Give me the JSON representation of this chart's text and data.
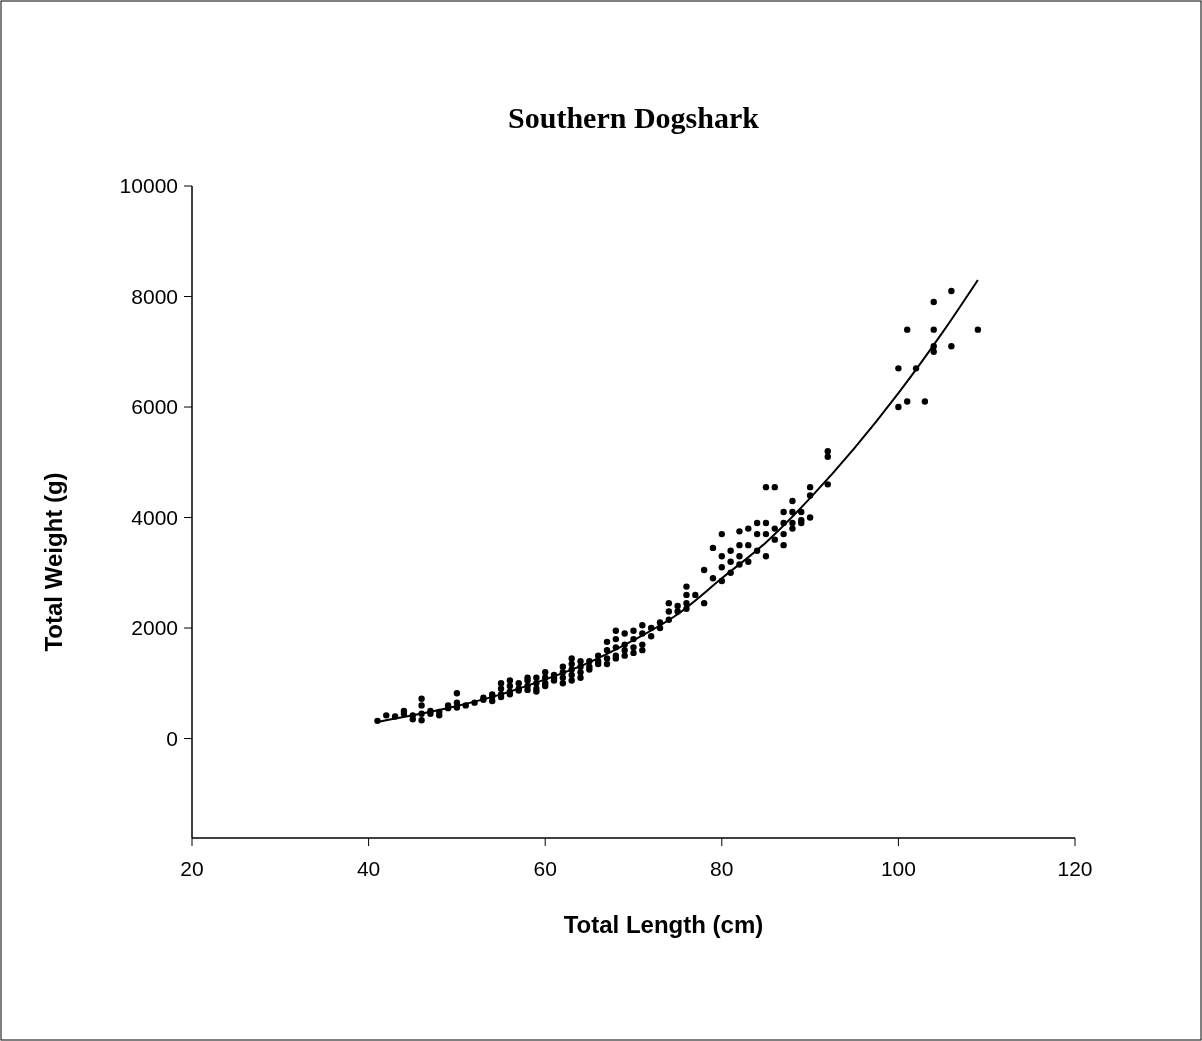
{
  "chart_data": {
    "type": "scatter",
    "title": "Southern Dogshark",
    "xlabel": "Total Length (cm)",
    "ylabel": "Total Weight (g)",
    "xlim": [
      20,
      120
    ],
    "xticks": [
      20,
      40,
      60,
      80,
      100,
      120
    ],
    "ylim": [
      -1800,
      10000
    ],
    "yticks": [
      0,
      2000,
      4000,
      6000,
      8000,
      10000
    ],
    "grid": false,
    "marker": "circle",
    "series": [
      {
        "color": "#000000",
        "x": [
          41,
          42,
          43,
          44,
          44,
          45,
          45,
          46,
          46,
          46,
          46,
          47,
          47,
          48,
          48,
          49,
          49,
          50,
          50,
          50,
          51,
          52,
          53,
          53,
          54,
          54,
          54,
          55,
          55,
          55,
          55,
          56,
          56,
          56,
          56,
          57,
          57,
          57,
          58,
          58,
          58,
          58,
          59,
          59,
          59,
          59,
          60,
          60,
          60,
          60,
          61,
          61,
          61,
          62,
          62,
          62,
          62,
          63,
          63,
          63,
          63,
          63,
          64,
          64,
          64,
          64,
          65,
          65,
          65,
          66,
          66,
          66,
          67,
          67,
          67,
          67,
          68,
          68,
          68,
          68,
          68,
          69,
          69,
          69,
          69,
          70,
          70,
          70,
          70,
          71,
          71,
          71,
          71,
          72,
          72,
          73,
          73,
          74,
          74,
          74,
          75,
          75,
          76,
          76,
          76,
          76,
          77,
          78,
          78,
          79,
          79,
          80,
          80,
          80,
          80,
          81,
          81,
          81,
          82,
          82,
          82,
          82,
          83,
          83,
          83,
          84,
          84,
          84,
          85,
          85,
          85,
          85,
          86,
          86,
          86,
          87,
          87,
          87,
          87,
          88,
          88,
          88,
          88,
          89,
          89,
          89,
          90,
          90,
          90,
          92,
          92,
          92,
          100,
          100,
          101,
          101,
          102,
          103,
          104,
          104,
          104,
          104,
          106,
          106,
          109
        ],
        "values": [
          320,
          420,
          400,
          450,
          500,
          350,
          420,
          330,
          450,
          600,
          720,
          450,
          500,
          480,
          420,
          550,
          600,
          560,
          650,
          820,
          600,
          650,
          700,
          740,
          680,
          760,
          800,
          800,
          900,
          1000,
          750,
          850,
          950,
          1050,
          800,
          900,
          1000,
          870,
          950,
          1050,
          1100,
          880,
          900,
          1000,
          1100,
          850,
          1000,
          1100,
          1200,
          950,
          1100,
          1050,
          1150,
          1100,
          1200,
          1300,
          1000,
          1150,
          1250,
          1350,
          1450,
          1050,
          1200,
          1300,
          1400,
          1100,
          1300,
          1400,
          1250,
          1400,
          1500,
          1350,
          1450,
          1600,
          1750,
          1350,
          1500,
          1650,
          1800,
          1950,
          1450,
          1600,
          1700,
          1900,
          1500,
          1650,
          1800,
          1950,
          1550,
          1700,
          1900,
          2050,
          1600,
          1850,
          2000,
          2000,
          2100,
          2300,
          2450,
          2150,
          2300,
          2400,
          2450,
          2600,
          2750,
          2350,
          2600,
          2450,
          3050,
          2900,
          3450,
          3100,
          3300,
          3700,
          2850,
          3000,
          3200,
          3400,
          3300,
          3500,
          3750,
          3150,
          3500,
          3800,
          3200,
          3700,
          3900,
          3400,
          3300,
          3700,
          3900,
          4550,
          3600,
          3800,
          4550,
          3500,
          3900,
          4100,
          3700,
          3900,
          4100,
          4300,
          3800,
          3900,
          4100,
          3950,
          4000,
          4400,
          4550,
          4600,
          5100,
          5200,
          6000,
          6700,
          6100,
          7400,
          6700,
          6100,
          7000,
          7100,
          7400,
          7900,
          7100,
          8100,
          7400
        ]
      },
      {
        "type": "line",
        "color": "#000000",
        "marker": "none",
        "line_style": "solid",
        "x": [
          41,
          45,
          50,
          55,
          60,
          65,
          70,
          75,
          80,
          85,
          90,
          95,
          100,
          105,
          109
        ],
        "values": [
          300,
          420,
          590,
          800,
          1070,
          1380,
          1780,
          2250,
          2900,
          3550,
          4350,
          5250,
          6250,
          7350,
          8300
        ]
      }
    ]
  }
}
